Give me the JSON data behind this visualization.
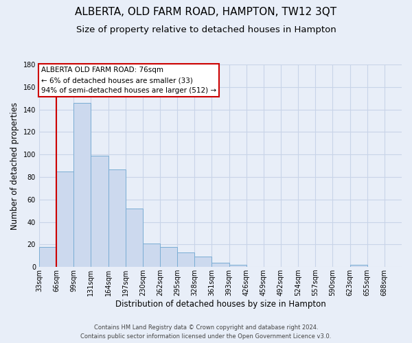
{
  "title": "ALBERTA, OLD FARM ROAD, HAMPTON, TW12 3QT",
  "subtitle": "Size of property relative to detached houses in Hampton",
  "xlabel": "Distribution of detached houses by size in Hampton",
  "ylabel": "Number of detached properties",
  "bin_labels": [
    "33sqm",
    "66sqm",
    "99sqm",
    "131sqm",
    "164sqm",
    "197sqm",
    "230sqm",
    "262sqm",
    "295sqm",
    "328sqm",
    "361sqm",
    "393sqm",
    "426sqm",
    "459sqm",
    "492sqm",
    "524sqm",
    "557sqm",
    "590sqm",
    "623sqm",
    "655sqm",
    "688sqm"
  ],
  "bar_values": [
    18,
    85,
    146,
    99,
    87,
    52,
    21,
    18,
    13,
    9,
    4,
    2,
    0,
    0,
    0,
    0,
    0,
    0,
    2,
    0,
    0
  ],
  "bar_color": "#ccd9ee",
  "bar_edge_color": "#7aadd4",
  "property_line_x": 1.0,
  "property_line_color": "#cc0000",
  "ylim": [
    0,
    180
  ],
  "yticks": [
    0,
    20,
    40,
    60,
    80,
    100,
    120,
    140,
    160,
    180
  ],
  "annotation_title": "ALBERTA OLD FARM ROAD: 76sqm",
  "annotation_line1": "← 6% of detached houses are smaller (33)",
  "annotation_line2": "94% of semi-detached houses are larger (512) →",
  "annotation_box_color": "#ffffff",
  "annotation_box_edge": "#cc0000",
  "footer_line1": "Contains HM Land Registry data © Crown copyright and database right 2024.",
  "footer_line2": "Contains public sector information licensed under the Open Government Licence v3.0.",
  "background_color": "#e8eef8",
  "grid_color": "#c8d4e8",
  "title_fontsize": 11,
  "subtitle_fontsize": 9.5,
  "axis_label_fontsize": 8.5,
  "tick_fontsize": 7,
  "footer_fontsize": 6,
  "annotation_fontsize": 7.5
}
